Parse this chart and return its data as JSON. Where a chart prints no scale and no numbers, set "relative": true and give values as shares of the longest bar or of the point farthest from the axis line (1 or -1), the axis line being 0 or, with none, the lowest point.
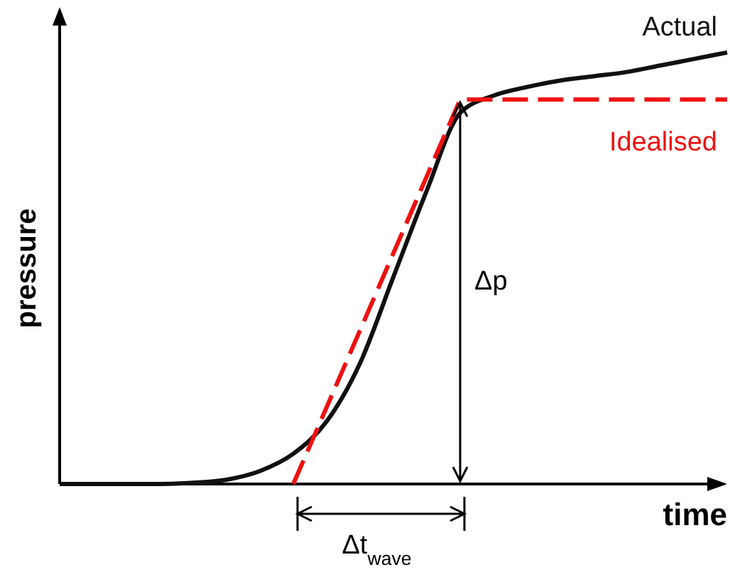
{
  "chart_data": {
    "type": "line",
    "relative": true,
    "xlabel": "time",
    "ylabel": "pressure",
    "categories": [
      null,
      null,
      null,
      null,
      null,
      null,
      null,
      null,
      null,
      null,
      null,
      null,
      null,
      null,
      null,
      null,
      null,
      null,
      null,
      null,
      null
    ],
    "series": [
      {
        "name": "Actual",
        "color": "#111111",
        "line_style": "solid",
        "values": [
          0,
          0,
          0,
          0,
          0.003,
          0.01,
          0.03,
          0.07,
          0.145,
          0.28,
          0.48,
          0.68,
          0.86,
          0.9,
          0.92,
          0.935,
          0.945,
          0.955,
          0.97,
          0.985,
          1.0
        ]
      },
      {
        "name": "Idealised",
        "color": "#ee1111",
        "line_style": "dashed",
        "values": [
          null,
          null,
          null,
          null,
          null,
          null,
          null,
          0,
          0.178,
          0.356,
          0.535,
          0.713,
          0.891,
          0.891,
          0.891,
          0.891,
          0.891,
          0.891,
          0.891,
          0.891,
          0.891
        ]
      }
    ],
    "annotations": [
      "Δp",
      "Δt$_{wave}$"
    ]
  }
}
